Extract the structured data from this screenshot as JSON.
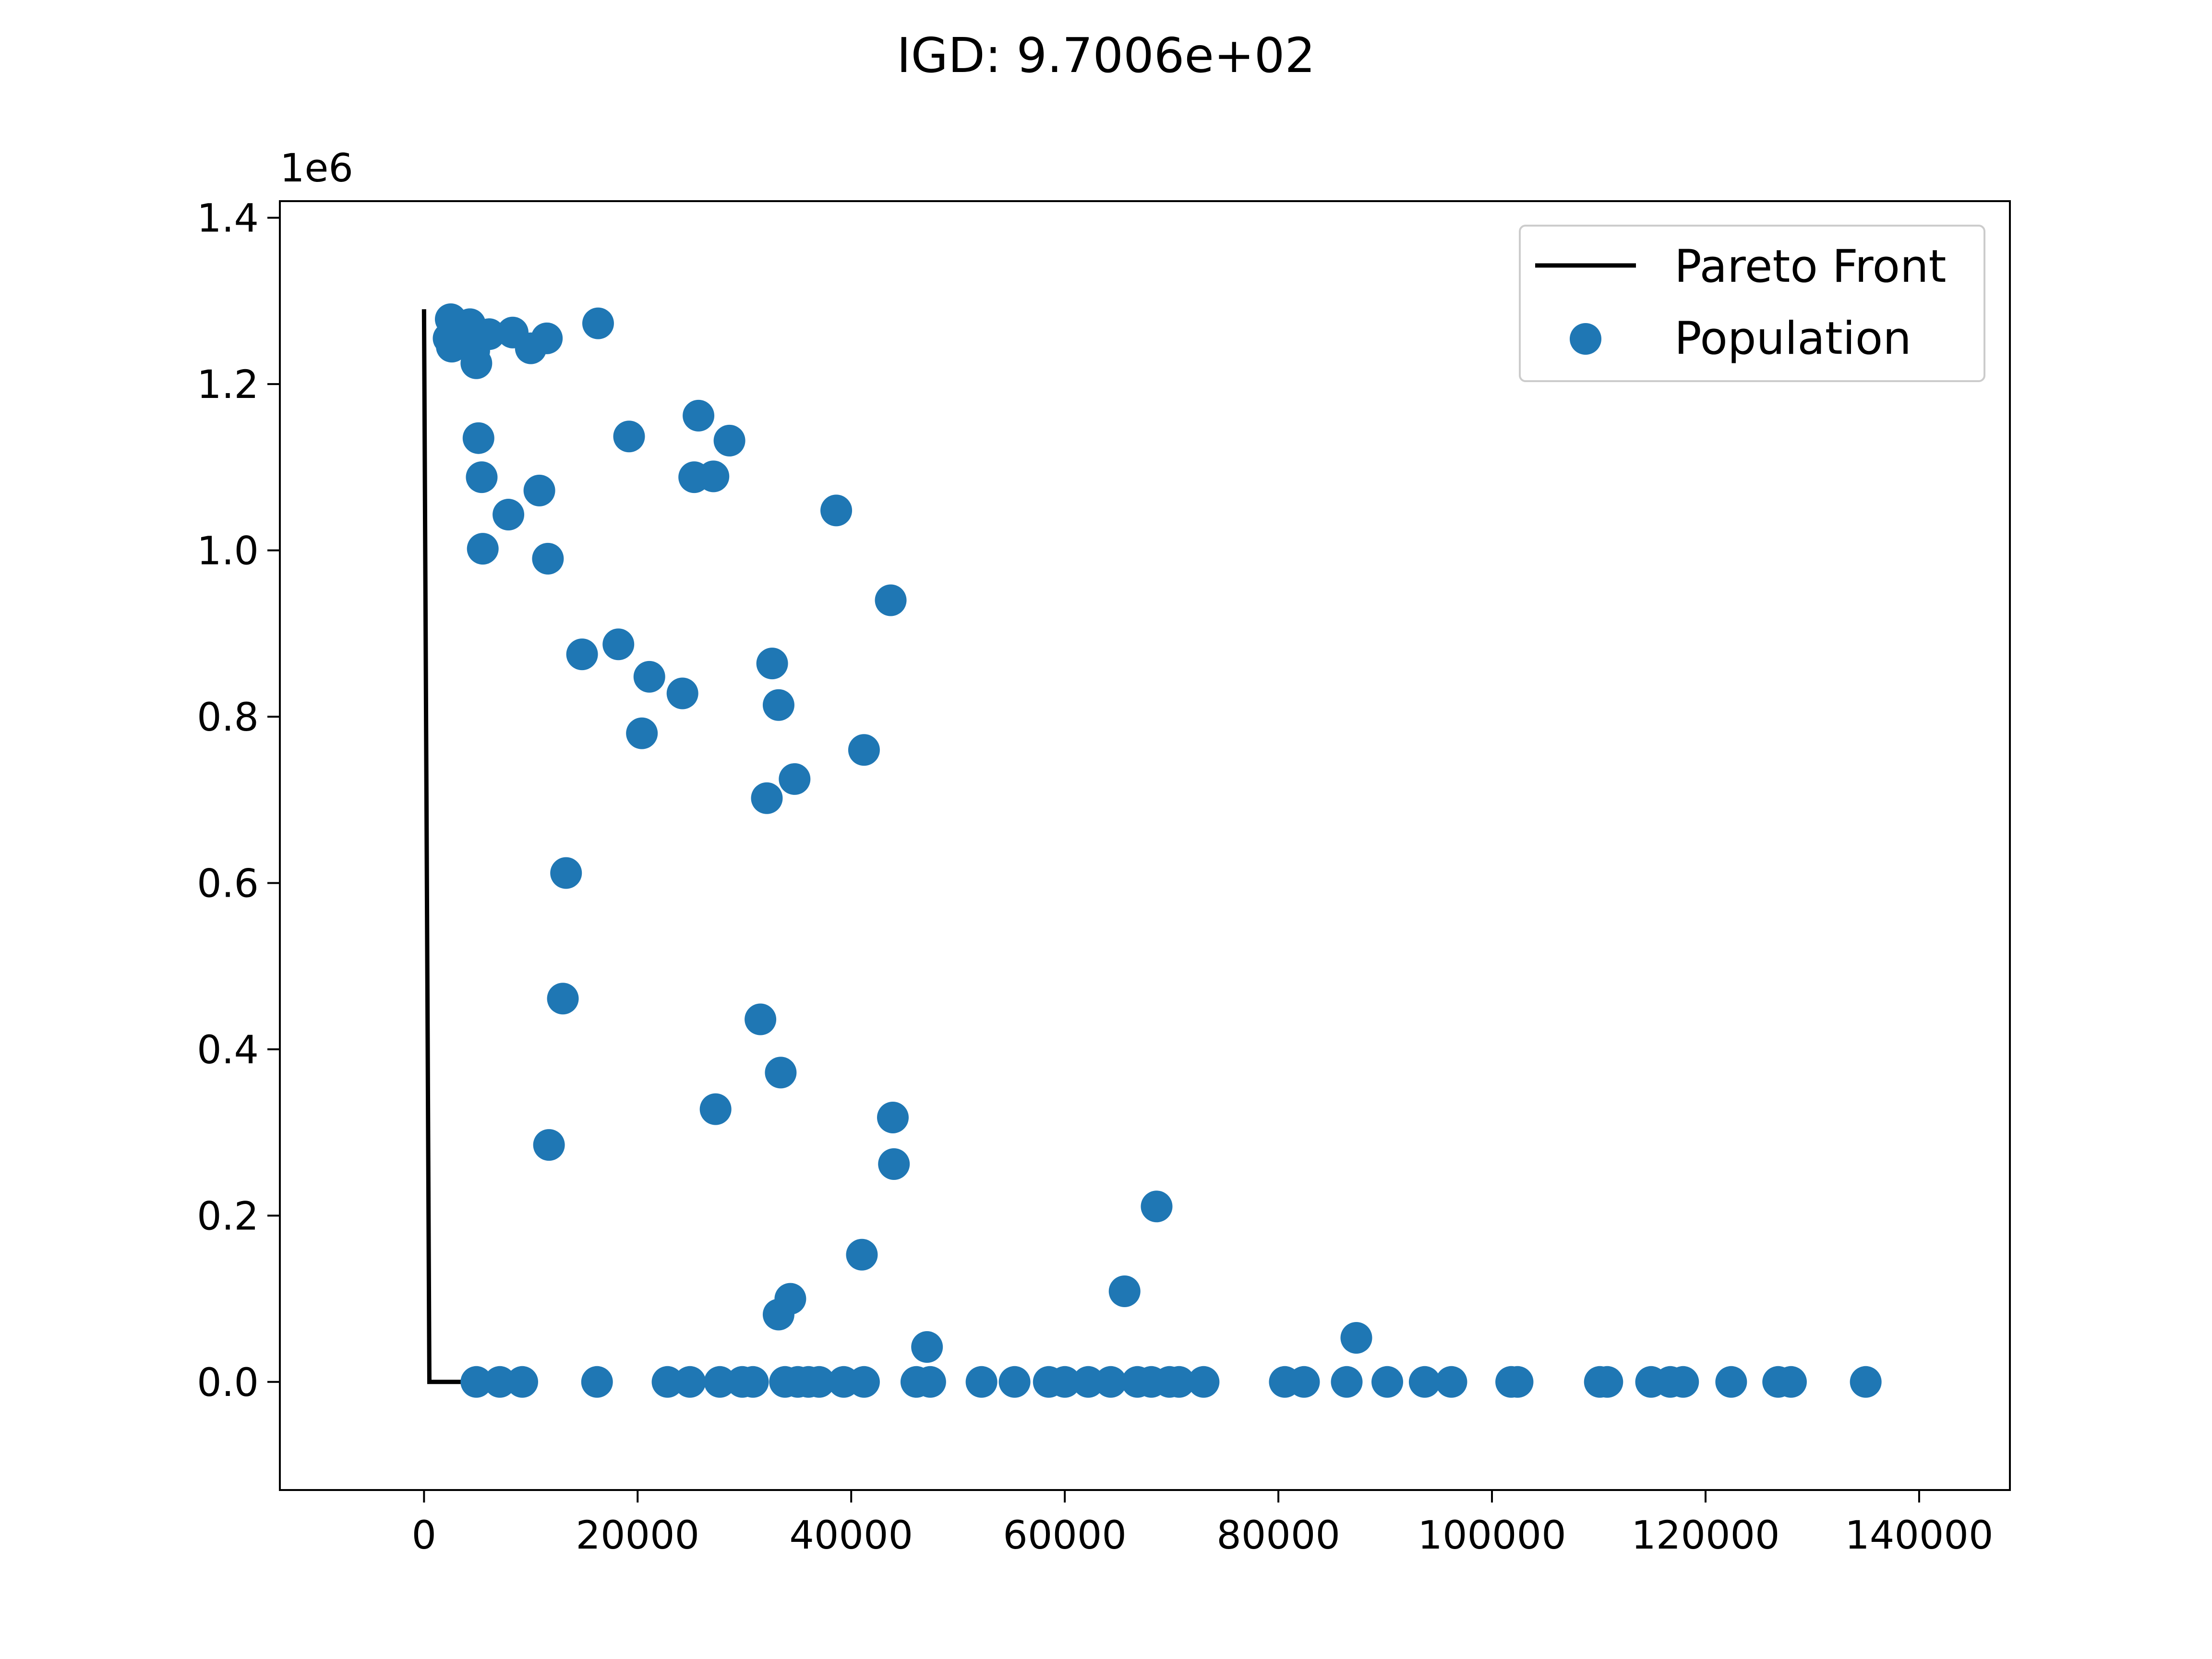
{
  "chart_data": {
    "type": "scatter",
    "title": "IGD: 9.7006e+02",
    "xlabel": "",
    "ylabel": "",
    "y_offset_label": "1e6",
    "xlim": [
      -13500,
      148500
    ],
    "ylim": [
      -0.13,
      1.42
    ],
    "y_scale": 1000000,
    "x_ticks": [
      0,
      20000,
      40000,
      60000,
      80000,
      100000,
      120000,
      140000
    ],
    "x_tick_labels": [
      "0",
      "20000",
      "40000",
      "60000",
      "80000",
      "100000",
      "120000",
      "140000"
    ],
    "y_ticks": [
      0.0,
      0.2,
      0.4,
      0.6,
      0.8,
      1.0,
      1.2,
      1.4
    ],
    "y_tick_labels": [
      "0.0",
      "0.2",
      "0.4",
      "0.6",
      "0.8",
      "1.0",
      "1.2",
      "1.4"
    ],
    "grid": false,
    "legend_position": "top-right",
    "series": [
      {
        "name": "Pareto Front",
        "kind": "line",
        "color": "#000000",
        "points": [
          [
            0,
            1.29
          ],
          [
            500,
            0.0
          ],
          [
            6000,
            0.0
          ]
        ]
      },
      {
        "name": "Population",
        "kind": "scatter",
        "color": "#1f77b4",
        "points": [
          [
            2500,
            1.278
          ],
          [
            4300,
            1.272
          ],
          [
            2300,
            1.255
          ],
          [
            2600,
            1.245
          ],
          [
            3800,
            1.258
          ],
          [
            4700,
            1.24
          ],
          [
            4900,
            1.225
          ],
          [
            6100,
            1.26
          ],
          [
            8300,
            1.262
          ],
          [
            10000,
            1.243
          ],
          [
            11500,
            1.255
          ],
          [
            16300,
            1.273
          ],
          [
            5100,
            1.135
          ],
          [
            5400,
            1.088
          ],
          [
            7900,
            1.043
          ],
          [
            10800,
            1.072
          ],
          [
            5500,
            1.002
          ],
          [
            11600,
            0.99
          ],
          [
            19200,
            1.137
          ],
          [
            25700,
            1.162
          ],
          [
            28600,
            1.132
          ],
          [
            25300,
            1.088
          ],
          [
            27100,
            1.089
          ],
          [
            38600,
            1.048
          ],
          [
            43700,
            0.94
          ],
          [
            14800,
            0.875
          ],
          [
            18200,
            0.887
          ],
          [
            21100,
            0.848
          ],
          [
            24200,
            0.828
          ],
          [
            20400,
            0.78
          ],
          [
            32600,
            0.864
          ],
          [
            33200,
            0.814
          ],
          [
            41200,
            0.76
          ],
          [
            34700,
            0.725
          ],
          [
            32100,
            0.702
          ],
          [
            13300,
            0.612
          ],
          [
            13000,
            0.461
          ],
          [
            11700,
            0.285
          ],
          [
            31500,
            0.436
          ],
          [
            33400,
            0.372
          ],
          [
            27300,
            0.328
          ],
          [
            43900,
            0.318
          ],
          [
            44000,
            0.262
          ],
          [
            68600,
            0.211
          ],
          [
            65600,
            0.109
          ],
          [
            41000,
            0.153
          ],
          [
            34300,
            0.1
          ],
          [
            33200,
            0.081
          ],
          [
            47100,
            0.042
          ],
          [
            87300,
            0.053
          ],
          [
            4900,
            0.0
          ],
          [
            7100,
            0.0
          ],
          [
            9200,
            0.0
          ],
          [
            16200,
            0.0
          ],
          [
            22800,
            0.0
          ],
          [
            24900,
            0.0
          ],
          [
            27700,
            0.0
          ],
          [
            29800,
            0.0
          ],
          [
            30800,
            0.0
          ],
          [
            33800,
            0.0
          ],
          [
            35000,
            0.0
          ],
          [
            36000,
            0.0
          ],
          [
            37000,
            0.0
          ],
          [
            39300,
            0.0
          ],
          [
            41200,
            0.0
          ],
          [
            46100,
            0.0
          ],
          [
            47400,
            0.0
          ],
          [
            52200,
            0.0
          ],
          [
            55300,
            0.0
          ],
          [
            58500,
            0.0
          ],
          [
            60000,
            0.0
          ],
          [
            62200,
            0.0
          ],
          [
            64300,
            0.0
          ],
          [
            66800,
            0.0
          ],
          [
            68100,
            0.0
          ],
          [
            69800,
            0.0
          ],
          [
            70700,
            0.0
          ],
          [
            73000,
            0.0
          ],
          [
            80600,
            0.0
          ],
          [
            82400,
            0.0
          ],
          [
            86400,
            0.0
          ],
          [
            90200,
            0.0
          ],
          [
            93700,
            0.0
          ],
          [
            96200,
            0.0
          ],
          [
            101800,
            0.0
          ],
          [
            102400,
            0.0
          ],
          [
            110100,
            0.0
          ],
          [
            110800,
            0.0
          ],
          [
            114900,
            0.0
          ],
          [
            116700,
            0.0
          ],
          [
            117900,
            0.0
          ],
          [
            122400,
            0.0
          ],
          [
            126800,
            0.0
          ],
          [
            128000,
            0.0
          ],
          [
            135000,
            0.0
          ]
        ]
      }
    ]
  }
}
